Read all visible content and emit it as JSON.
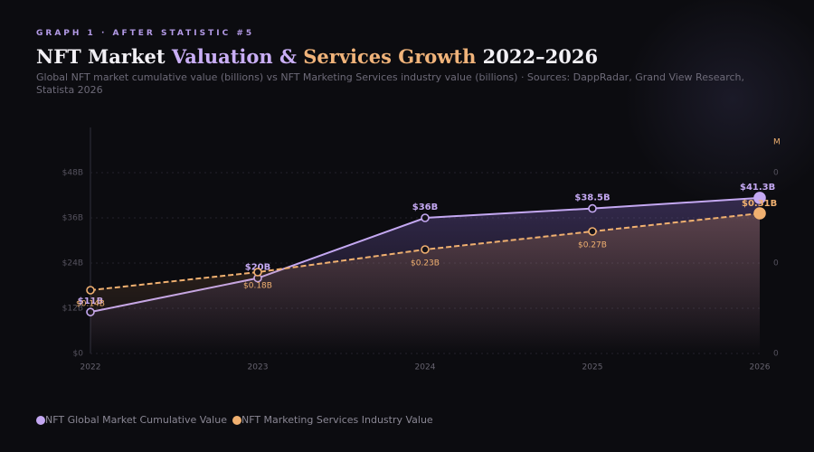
{
  "chart_data": {
    "type": "line",
    "overline": "GRAPH 1 · AFTER STATISTIC #5",
    "title": [
      {
        "text": "NFT Market ",
        "color": "#f2f0f5"
      },
      {
        "text": "Valuation & ",
        "color": "#c9aef5"
      },
      {
        "text": "Services Growth",
        "color": "#f0b37a"
      },
      {
        "text": " 2022–2026",
        "color": "#f2f0f5"
      }
    ],
    "subtitle": "Global NFT market cumulative value (billions) vs NFT Marketing Services industry value (billions) · Sources: DappRadar, Grand View Research, Statista 2026",
    "categories": [
      "2022",
      "2023",
      "2024",
      "2025",
      "2026"
    ],
    "series": [
      {
        "name": "NFT Global Market Cumulative Value",
        "color": "#c4a8f2",
        "values": [
          11,
          20,
          36,
          38.5,
          41.3
        ],
        "value_labels": [
          "$11B",
          "$20B",
          "$36B",
          "$38.5B",
          "$41.3B"
        ]
      },
      {
        "name": "NFT Marketing Services Industry Value",
        "color": "#f0b070",
        "axis": "y2",
        "values": [
          0.14,
          0.18,
          0.23,
          0.27,
          0.31
        ],
        "value_labels": [
          "$0.14B",
          "$0.18B",
          "$0.23B",
          "$0.27B",
          "$0.31B"
        ]
      }
    ],
    "ylim": [
      0,
      60
    ],
    "yticks": [
      {
        "value": 0,
        "label": "$0"
      },
      {
        "value": 12,
        "label": "$12B"
      },
      {
        "value": 24,
        "label": "$24B"
      },
      {
        "value": 36,
        "label": "$36B"
      },
      {
        "value": 48,
        "label": "$48B"
      }
    ],
    "y2lim": [
      0,
      0.5
    ],
    "y2ticks": [
      0,
      {
        "value": 0.2,
        "label": "0"
      },
      {
        "value": 0.4,
        "label": "0"
      }
    ],
    "y2_label": "M",
    "grid": true
  }
}
